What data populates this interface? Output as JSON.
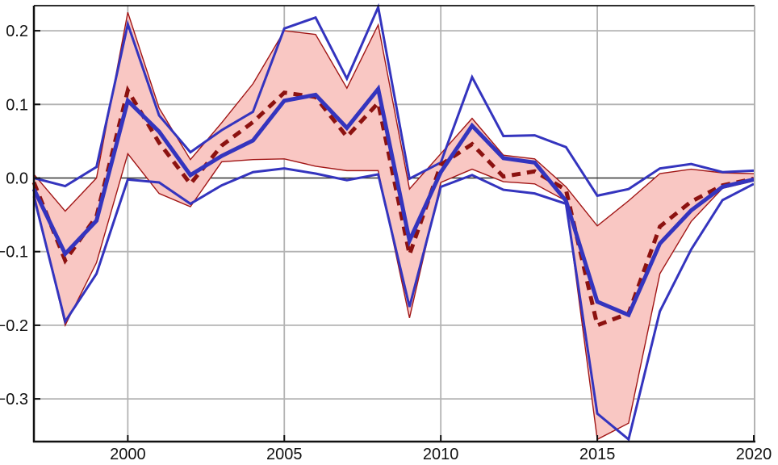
{
  "chart_data": {
    "type": "line",
    "title": "",
    "xlabel": "",
    "ylabel": "",
    "grid": true,
    "legend": "none",
    "x": [
      1997,
      1998,
      1999,
      2000,
      2001,
      2002,
      2003,
      2004,
      2005,
      2006,
      2007,
      2008,
      2009,
      2010,
      2011,
      2012,
      2013,
      2014,
      2015,
      2016,
      2017,
      2018,
      2019,
      2020
    ],
    "xlim": [
      1997,
      2020.1
    ],
    "ylim": [
      -0.358,
      0.234
    ],
    "x_ticks": [
      2000,
      2005,
      2010,
      2015,
      2020
    ],
    "x_tick_labels": [
      "2000",
      "2005",
      "2010",
      "2015",
      "2020"
    ],
    "y_ticks": [
      0.2,
      0.1,
      0.0,
      -0.1,
      -0.2,
      -0.3
    ],
    "y_tick_labels": [
      "0.2",
      "0.1",
      "0.0",
      "−0.1",
      "−0.2",
      "−0.3"
    ],
    "zero_line": true,
    "band": {
      "name": "red-confidence-band",
      "fill": "#f9c7c3",
      "edge_color": "#a11616",
      "edge_width": 1.4,
      "upper": [
        0.005,
        -0.045,
        0.0,
        0.225,
        0.095,
        0.025,
        0.075,
        0.128,
        0.2,
        0.195,
        0.122,
        0.208,
        -0.015,
        0.033,
        0.081,
        0.031,
        0.026,
        -0.012,
        -0.065,
        -0.031,
        0.006,
        0.012,
        0.007,
        0.006
      ],
      "lower": [
        -0.02,
        -0.2,
        -0.115,
        0.033,
        -0.021,
        -0.039,
        0.022,
        0.025,
        0.026,
        0.016,
        0.01,
        0.01,
        -0.19,
        -0.006,
        0.012,
        -0.005,
        -0.008,
        -0.031,
        -0.355,
        -0.333,
        -0.13,
        -0.059,
        -0.014,
        -0.004
      ]
    },
    "series": [
      {
        "name": "blue-upper-bound",
        "color": "#3434be",
        "width": 3,
        "dash": "solid",
        "values": [
          0.0,
          -0.011,
          0.015,
          0.209,
          0.085,
          0.035,
          0.065,
          0.09,
          0.203,
          0.218,
          0.135,
          0.232,
          -0.001,
          0.021,
          0.137,
          0.057,
          0.058,
          0.042,
          -0.024,
          -0.015,
          0.013,
          0.019,
          0.008,
          0.01
        ]
      },
      {
        "name": "blue-lower-bound",
        "color": "#3434be",
        "width": 3,
        "dash": "solid",
        "values": [
          -0.025,
          -0.195,
          -0.13,
          -0.002,
          -0.006,
          -0.035,
          -0.01,
          0.008,
          0.013,
          0.006,
          -0.003,
          0.005,
          -0.175,
          -0.012,
          0.004,
          -0.016,
          -0.021,
          -0.035,
          -0.32,
          -0.355,
          -0.181,
          -0.097,
          -0.03,
          -0.008
        ]
      },
      {
        "name": "dark-red-dashed-estimate",
        "color": "#8c1210",
        "width": 5,
        "dash": "dashed",
        "values": [
          -0.006,
          -0.112,
          -0.052,
          0.119,
          0.048,
          -0.008,
          0.044,
          0.076,
          0.116,
          0.11,
          0.056,
          0.102,
          -0.104,
          0.018,
          0.046,
          0.002,
          0.009,
          -0.016,
          -0.2,
          -0.184,
          -0.066,
          -0.032,
          -0.01,
          -0.001
        ]
      },
      {
        "name": "blue-main-estimate",
        "color": "#3434be",
        "width": 5,
        "dash": "solid",
        "values": [
          -0.015,
          -0.103,
          -0.058,
          0.105,
          0.063,
          0.004,
          0.03,
          0.051,
          0.105,
          0.113,
          0.068,
          0.121,
          -0.085,
          0.008,
          0.071,
          0.027,
          0.021,
          -0.031,
          -0.168,
          -0.186,
          -0.089,
          -0.044,
          -0.012,
          -0.002
        ]
      }
    ],
    "style": {
      "grid_color": "#b3b3b3",
      "grid_width": 1.8,
      "zero_line_color": "#333333",
      "zero_line_width": 1.6,
      "frame_color": "#111111",
      "frame_right_color": "#b3b3b3",
      "tick_color": "#111111",
      "tick_label_size": 20,
      "background": "#ffffff"
    }
  }
}
